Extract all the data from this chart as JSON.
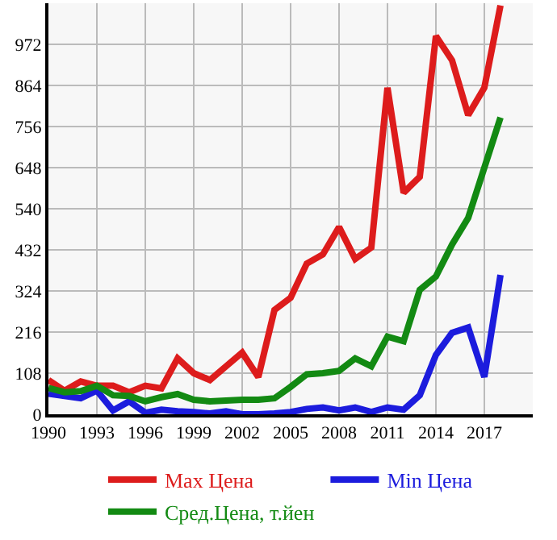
{
  "chart_data": {
    "type": "line",
    "x": [
      1990,
      1991,
      1992,
      1993,
      1994,
      1995,
      1996,
      1997,
      1998,
      1999,
      2000,
      2001,
      2002,
      2003,
      2004,
      2005,
      2006,
      2007,
      2008,
      2009,
      2010,
      2011,
      2012,
      2013,
      2014,
      2015,
      2016,
      2017,
      2018
    ],
    "series": [
      {
        "name": "Max Цена",
        "color": "#dd1c1c",
        "values": [
          90,
          62,
          86,
          75,
          75,
          58,
          75,
          68,
          147,
          108,
          90,
          126,
          162,
          98,
          274,
          306,
          396,
          420,
          492,
          408,
          438,
          858,
          582,
          624,
          994,
          930,
          786,
          858,
          1074
        ]
      },
      {
        "name": "Min Цена",
        "color": "#1c1cdd",
        "values": [
          54,
          48,
          42,
          62,
          10,
          34,
          4,
          12,
          8,
          6,
          2,
          8,
          0,
          0,
          2,
          6,
          14,
          18,
          10,
          18,
          6,
          18,
          12,
          50,
          156,
          214,
          228,
          98,
          366
        ]
      },
      {
        "name": "Сред.Цена, т.йен",
        "color": "#138a13",
        "values": [
          69,
          58,
          61,
          75,
          50,
          48,
          34,
          45,
          53,
          38,
          34,
          36,
          38,
          38,
          42,
          72,
          105,
          108,
          114,
          147,
          126,
          204,
          192,
          327,
          362,
          446,
          516,
          648,
          780
        ]
      }
    ],
    "xlim": [
      1990,
      2020
    ],
    "xticks": [
      1990,
      1993,
      1996,
      1999,
      2002,
      2005,
      2008,
      2011,
      2014,
      2017
    ],
    "ylim": [
      0,
      1080
    ],
    "yticks": [
      0,
      108,
      216,
      324,
      432,
      540,
      648,
      756,
      864,
      972
    ],
    "grid": true,
    "legend": "bottom",
    "line_style": "solid",
    "marker": "none"
  }
}
